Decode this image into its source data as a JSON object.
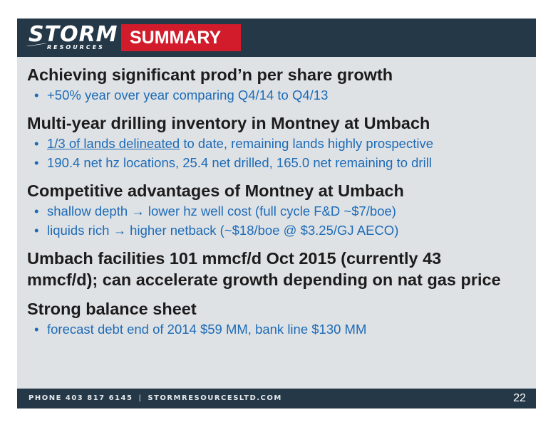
{
  "header": {
    "logo_main": "STORM",
    "logo_sub": "RESOURCES",
    "title": "SUMMARY"
  },
  "sections": [
    {
      "heading": "Achieving significant prod’n per share growth",
      "bullets": [
        "+50% year over year comparing Q4/14 to Q4/13"
      ]
    },
    {
      "heading": "Multi-year drilling inventory in Montney at Umbach",
      "bullets": [
        {
          "link_text": "1/3 of lands delineated",
          "rest": " to date, remaining lands highly prospective"
        },
        "190.4 net hz locations, 25.4 net drilled, 165.0 net remaining to drill"
      ]
    },
    {
      "heading": "Competitive advantages of Montney at Umbach",
      "bullets": [
        "shallow depth → lower hz well cost (full cycle F&D ~$7/boe)",
        "liquids rich → higher netback (~$18/boe @ $3.25/GJ AECO)"
      ]
    },
    {
      "heading_line1": "Umbach facilities 101 mmcf/d Oct 2015 (currently 43",
      "heading_line2": "mmcf/d); can accelerate growth depending on nat gas price"
    },
    {
      "heading": "Strong balance sheet",
      "bullets": [
        "forecast debt end of 2014 $59 MM, bank line $130 MM"
      ]
    }
  ],
  "footer": {
    "phone": "PHONE 403 817 6145",
    "separator": "|",
    "website": "STORMRESOURCESLTD.COM",
    "page_number": "22"
  },
  "colors": {
    "header_bg": "#243848",
    "title_bg": "#d21c2c",
    "slide_bg": "#dfe2e5",
    "bullet_text": "#1d6bb7"
  }
}
